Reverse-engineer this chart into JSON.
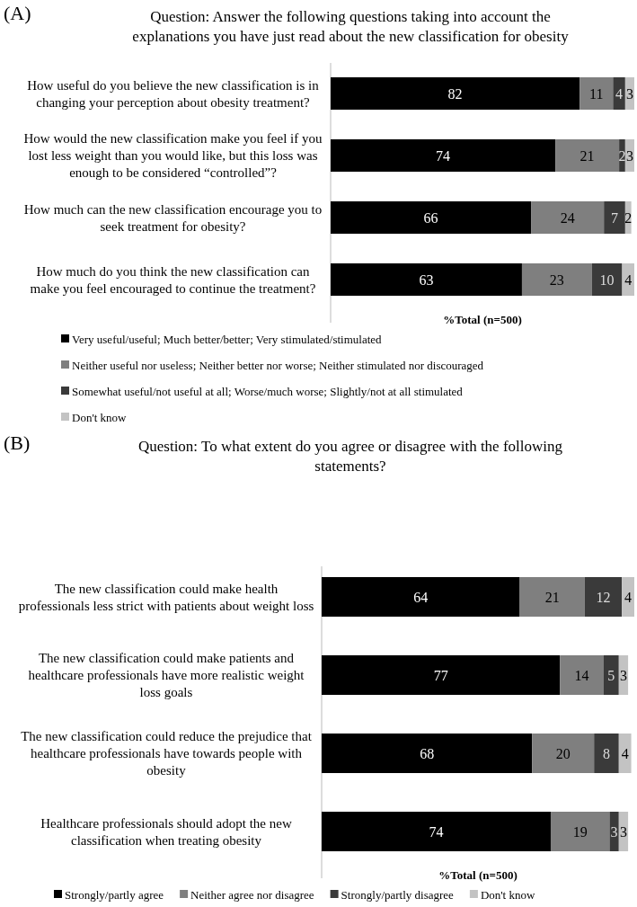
{
  "chart_data": [
    {
      "type": "bar",
      "orientation": "horizontal",
      "stacked": true,
      "data_labels": true,
      "legend": "bottom",
      "annotations": [
        "(A)"
      ],
      "title": "Question: Answer the following questions taking into account the explanations you have just read about the new classification for obesity",
      "xlabel": "%Total (n=500)",
      "categories": [
        "How useful do you believe the new classification is in changing your perception about obesity treatment?",
        "How would the new classification make you feel if you lost less weight than you would like, but this loss was enough to be considered “controlled”?",
        "How much can the new classification encourage you to seek treatment for obesity?",
        "How much do you think the new classification can make you feel encouraged to continue the treatment?"
      ],
      "series": [
        {
          "name": "Very useful/useful; Much better/better; Very stimulated/stimulated",
          "color": "#000000",
          "values": [
            82,
            74,
            66,
            63
          ]
        },
        {
          "name": "Neither useful nor useless; Neither better nor worse; Neither stimulated nor discouraged",
          "color": "#7f7f7f",
          "values": [
            11,
            21,
            24,
            23
          ]
        },
        {
          "name": "Somewhat useful/not useful at all; Worse/much worse; Slightly/not at all stimulated",
          "color": "#3a3a3a",
          "values": [
            4,
            2,
            7,
            10
          ]
        },
        {
          "name": "Don't know",
          "color": "#c3c3c3",
          "values": [
            3,
            3,
            2,
            4
          ]
        }
      ]
    },
    {
      "type": "bar",
      "orientation": "horizontal",
      "stacked": true,
      "data_labels": true,
      "legend": "bottom",
      "annotations": [
        "(B)"
      ],
      "title": "Question: To what extent do you agree or disagree with the following statements?",
      "xlabel": "%Total (n=500)",
      "categories": [
        "The new classification could make health professionals less strict with patients about weight loss",
        "The new classification could make patients and healthcare professionals have more realistic weight loss goals",
        "The new classification could reduce the prejudice that healthcare professionals have towards people with obesity",
        "Healthcare professionals should adopt the new classification when treating obesity"
      ],
      "series": [
        {
          "name": "Strongly/partly agree",
          "color": "#000000",
          "values": [
            64,
            77,
            68,
            74
          ]
        },
        {
          "name": "Neither agree nor disagree",
          "color": "#7f7f7f",
          "values": [
            21,
            14,
            20,
            19
          ]
        },
        {
          "name": "Strongly/partly disagree",
          "color": "#3a3a3a",
          "values": [
            12,
            5,
            8,
            3
          ]
        },
        {
          "name": "Don't know",
          "color": "#c3c3c3",
          "values": [
            4,
            3,
            4,
            3
          ]
        }
      ]
    }
  ]
}
